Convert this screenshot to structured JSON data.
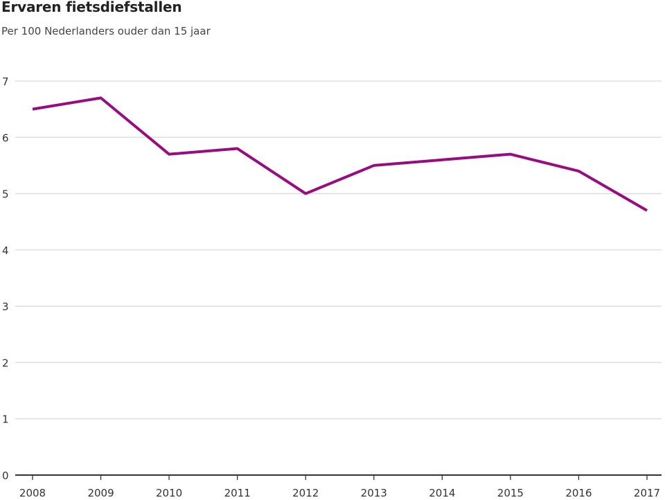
{
  "chart_data": {
    "type": "line",
    "title": "Ervaren fietsdiefstallen",
    "subtitle": "Per 100 Nederlanders ouder dan 15 jaar",
    "xlabel": "",
    "ylabel": "",
    "categories": [
      "2008",
      "2009",
      "2010",
      "2011",
      "2012",
      "2013",
      "2014",
      "2015",
      "2016",
      "2017"
    ],
    "series": [
      {
        "values": [
          6.5,
          6.7,
          5.7,
          5.8,
          5.0,
          5.5,
          5.6,
          5.7,
          5.4,
          4.7
        ]
      }
    ],
    "ylim": [
      0,
      7
    ],
    "yticks": [
      "0",
      "1",
      "2",
      "3",
      "4",
      "5",
      "6",
      "7"
    ],
    "grid": true,
    "legend": "none",
    "line_color": "#990b80",
    "grid_color": "#d9d9d9",
    "axis_color": "#333333"
  }
}
